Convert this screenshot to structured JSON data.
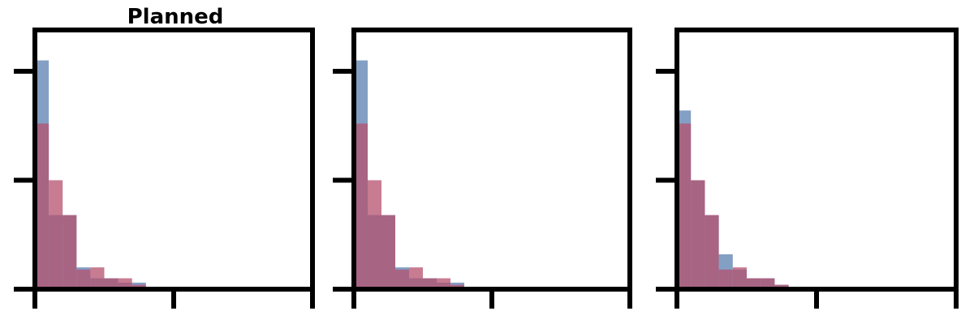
{
  "chart_data": [
    {
      "type": "histogram",
      "title": "Planned",
      "xlim": [
        0,
        1
      ],
      "ylim": [
        0,
        1
      ],
      "yticks": [
        0,
        0.5,
        1
      ],
      "xticks": [
        0,
        0.5,
        1
      ],
      "bin_edges": [
        0,
        0.05,
        0.1,
        0.15,
        0.2,
        0.25,
        0.3,
        0.35,
        0.4,
        0.45,
        0.5,
        0.55,
        0.6,
        0.65,
        0.7,
        0.75,
        0.8,
        0.85,
        0.9,
        0.95,
        1.0
      ],
      "series": [
        {
          "color": "#5a7fb0",
          "values": [
            1.05,
            0.34,
            0.34,
            0.1,
            0.05,
            0.05,
            0.03,
            0.03,
            0.01,
            0.01,
            0.01,
            0.01,
            0.01,
            0.01,
            0.01,
            0.01,
            0.01,
            0.01,
            0.01,
            0.01
          ]
        },
        {
          "color": "#b4506e",
          "values": [
            0.76,
            0.5,
            0.34,
            0.09,
            0.1,
            0.05,
            0.05,
            0.02,
            0.01,
            0.01,
            0.01,
            0.01,
            0.01,
            0.01,
            0.01,
            0.01,
            0.01,
            0.01,
            0.01,
            0.01
          ]
        }
      ]
    },
    {
      "type": "histogram",
      "title": "",
      "xlim": [
        0,
        1
      ],
      "ylim": [
        0,
        1
      ],
      "yticks": [
        0,
        0.5,
        1
      ],
      "xticks": [
        0,
        0.5,
        1
      ],
      "bin_edges": [
        0,
        0.05,
        0.1,
        0.15,
        0.2,
        0.25,
        0.3,
        0.35,
        0.4,
        0.45,
        0.5,
        0.55,
        0.6,
        0.65,
        0.7,
        0.75,
        0.8,
        0.85,
        0.9,
        0.95,
        1.0
      ],
      "series": [
        {
          "color": "#5a7fb0",
          "values": [
            1.05,
            0.34,
            0.34,
            0.1,
            0.05,
            0.05,
            0.03,
            0.03,
            0.01,
            0.01,
            0.01,
            0.01,
            0.01,
            0.01,
            0.01,
            0.01,
            0.01,
            0.01,
            0.01,
            0.01
          ]
        },
        {
          "color": "#b4506e",
          "values": [
            0.76,
            0.5,
            0.34,
            0.09,
            0.1,
            0.05,
            0.05,
            0.02,
            0.01,
            0.01,
            0.01,
            0.01,
            0.01,
            0.01,
            0.01,
            0.01,
            0.01,
            0.01,
            0.01,
            0.01
          ]
        }
      ]
    },
    {
      "type": "histogram",
      "title": "",
      "xlim": [
        0,
        1
      ],
      "ylim": [
        0,
        1
      ],
      "yticks": [
        0,
        0.5,
        1
      ],
      "xticks": [
        0,
        0.5,
        1
      ],
      "bin_edges": [
        0,
        0.05,
        0.1,
        0.15,
        0.2,
        0.25,
        0.3,
        0.35,
        0.4,
        0.45,
        0.5,
        0.55,
        0.6,
        0.65,
        0.7,
        0.75,
        0.8,
        0.85,
        0.9,
        0.95,
        1.0
      ],
      "series": [
        {
          "color": "#5a7fb0",
          "values": [
            0.82,
            0.5,
            0.34,
            0.16,
            0.09,
            0.05,
            0.05,
            0.02,
            0.01,
            0.01,
            0.01,
            0.01,
            0.01,
            0.01,
            0.0,
            0.0,
            0.0,
            0.0,
            0.0,
            0.0
          ]
        },
        {
          "color": "#b4506e",
          "values": [
            0.76,
            0.5,
            0.34,
            0.09,
            0.1,
            0.05,
            0.05,
            0.02,
            0.01,
            0.01,
            0.01,
            0.01,
            0.01,
            0.01,
            0.0,
            0.0,
            0.0,
            0.0,
            0.0,
            0.0
          ]
        }
      ]
    }
  ]
}
